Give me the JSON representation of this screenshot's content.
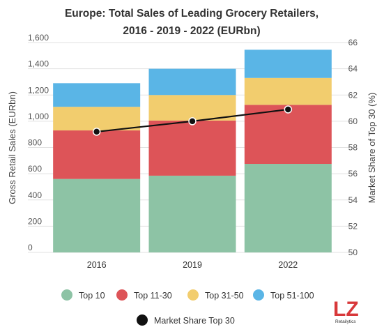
{
  "chart_data": {
    "type": "bar",
    "stacked": true,
    "title_lines": [
      "Europe: Total Sales of Leading Grocery Retailers,",
      "2016 - 2019 - 2022 (EURbn)"
    ],
    "categories": [
      "2016",
      "2019",
      "2022"
    ],
    "series": [
      {
        "name": "Top 10",
        "color": "#8dc3a5",
        "values": [
          560,
          585,
          675
        ]
      },
      {
        "name": "Top 11-30",
        "color": "#dd5458",
        "values": [
          370,
          420,
          450
        ]
      },
      {
        "name": "Top 31-50",
        "color": "#f2cd6e",
        "values": [
          180,
          195,
          205
        ]
      },
      {
        "name": "Top 51-100",
        "color": "#5ab5e6",
        "values": [
          180,
          200,
          215
        ]
      }
    ],
    "line_series": {
      "name": "Market Share Top 30",
      "color": "#111111",
      "values": [
        59.2,
        60.0,
        60.9
      ]
    },
    "ylabel": "Gross Retail Sales (EURbn)",
    "ylim": [
      0,
      1600
    ],
    "yticks": [
      "0",
      "200",
      "400",
      "600",
      "800",
      "1,000",
      "1,200",
      "1,400",
      "1,600"
    ],
    "y2label": "Market Share of Top 30 (%)",
    "y2lim": [
      50,
      66
    ],
    "y2ticks": [
      "50",
      "52",
      "54",
      "56",
      "58",
      "60",
      "62",
      "64",
      "66"
    ],
    "grid": true,
    "legend_position": "bottom"
  },
  "branding": {
    "logo": "LZ",
    "logo_sub": "Retailytics"
  }
}
